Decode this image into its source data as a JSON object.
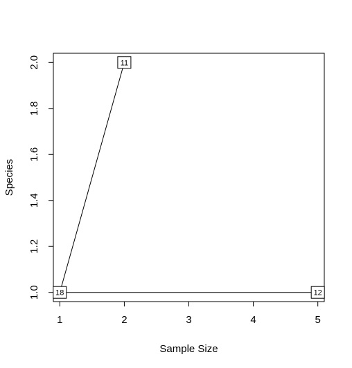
{
  "chart_data": {
    "type": "line",
    "xlabel": "Sample Size",
    "ylabel": "Species",
    "xlim": [
      0.9,
      5.1
    ],
    "ylim": [
      0.96,
      2.04
    ],
    "x_ticks": [
      1,
      2,
      3,
      4,
      5
    ],
    "y_ticks": [
      1.0,
      1.2,
      1.4,
      1.6,
      1.8,
      2.0
    ],
    "x_tick_labels": [
      "1",
      "2",
      "3",
      "4",
      "5"
    ],
    "y_tick_labels": [
      "1.0",
      "1.2",
      "1.4",
      "1.6",
      "1.8",
      "2.0"
    ],
    "grid": false,
    "line_color": "#000000",
    "series": [
      {
        "points": [
          {
            "x": 1,
            "y": 1.0,
            "label": "18"
          },
          {
            "x": 2,
            "y": 2.0,
            "label": "11"
          }
        ]
      },
      {
        "points": [
          {
            "x": 1,
            "y": 1.0,
            "label": "18"
          },
          {
            "x": 5,
            "y": 1.0,
            "label": "12"
          }
        ]
      }
    ]
  }
}
